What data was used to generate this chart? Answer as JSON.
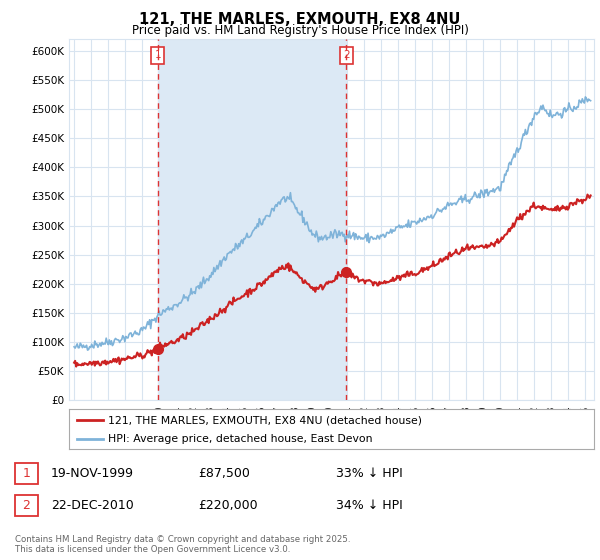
{
  "title": "121, THE MARLES, EXMOUTH, EX8 4NU",
  "subtitle": "Price paid vs. HM Land Registry's House Price Index (HPI)",
  "ylim": [
    0,
    620000
  ],
  "yticks": [
    0,
    50000,
    100000,
    150000,
    200000,
    250000,
    300000,
    350000,
    400000,
    450000,
    500000,
    550000,
    600000
  ],
  "fig_bg_color": "#ffffff",
  "plot_bg_color": "#ffffff",
  "grid_color": "#d8e4f0",
  "hpi_color": "#7fb3d9",
  "sale_color": "#cc2222",
  "vline_color": "#dd3333",
  "shade_color": "#dce9f5",
  "sale1_x": 1999.9,
  "sale1_y": 87500,
  "sale2_x": 2010.97,
  "sale2_y": 220000,
  "legend_hpi_label": "HPI: Average price, detached house, East Devon",
  "legend_sale_label": "121, THE MARLES, EXMOUTH, EX8 4NU (detached house)",
  "transaction1_date": "19-NOV-1999",
  "transaction1_price": "£87,500",
  "transaction1_hpi": "33% ↓ HPI",
  "transaction2_date": "22-DEC-2010",
  "transaction2_price": "£220,000",
  "transaction2_hpi": "34% ↓ HPI",
  "footnote": "Contains HM Land Registry data © Crown copyright and database right 2025.\nThis data is licensed under the Open Government Licence v3.0.",
  "xmin": 1994.7,
  "xmax": 2025.5
}
